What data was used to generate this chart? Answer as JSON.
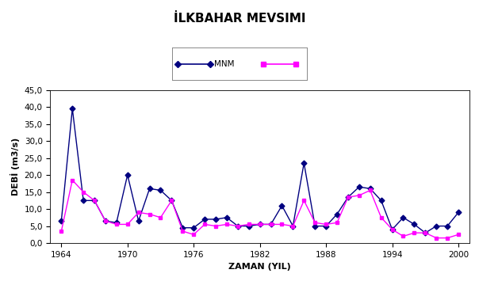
{
  "title": "İLKBAHAR MEVSIMI",
  "xlabel": "ZAMAN (YIL)",
  "ylabel": "DEBİ (m3/s)",
  "series1_label": "MNM",
  "series1_color": "#000080",
  "series2_color": "#FF00FF",
  "years": [
    1964,
    1965,
    1966,
    1967,
    1968,
    1969,
    1970,
    1971,
    1972,
    1973,
    1974,
    1975,
    1976,
    1977,
    1978,
    1979,
    1980,
    1981,
    1982,
    1983,
    1984,
    1985,
    1986,
    1987,
    1988,
    1989,
    1990,
    1991,
    1992,
    1993,
    1994,
    1995,
    1996,
    1997,
    1998,
    1999,
    2000
  ],
  "mnm": [
    6.5,
    39.5,
    12.5,
    12.5,
    6.5,
    6.0,
    20.0,
    6.5,
    16.0,
    15.5,
    12.5,
    4.5,
    4.5,
    7.0,
    7.0,
    7.5,
    5.0,
    5.0,
    5.5,
    5.5,
    11.0,
    5.0,
    23.5,
    5.0,
    5.0,
    8.5,
    13.5,
    16.5,
    16.0,
    12.5,
    4.0,
    7.5,
    5.5,
    3.0,
    5.0,
    5.0,
    9.0
  ],
  "pink": [
    3.5,
    18.5,
    15.0,
    12.5,
    6.5,
    5.5,
    5.5,
    9.0,
    8.5,
    7.5,
    12.5,
    3.5,
    2.5,
    5.5,
    5.0,
    5.5,
    5.0,
    5.5,
    5.5,
    5.5,
    5.5,
    5.0,
    12.5,
    6.0,
    5.5,
    6.0,
    13.5,
    14.0,
    15.5,
    7.5,
    4.0,
    2.0,
    3.0,
    3.0,
    1.5,
    1.5,
    2.5
  ],
  "xlim": [
    1963,
    2001
  ],
  "ylim": [
    0.0,
    45.0
  ],
  "yticks": [
    0.0,
    5.0,
    10.0,
    15.0,
    20.0,
    25.0,
    30.0,
    35.0,
    40.0,
    45.0
  ],
  "xticks": [
    1964,
    1970,
    1976,
    1982,
    1988,
    1994,
    2000
  ],
  "markersize": 3.5,
  "linewidth": 1.0,
  "title_fontsize": 11,
  "axis_label_fontsize": 8,
  "tick_fontsize": 7.5
}
